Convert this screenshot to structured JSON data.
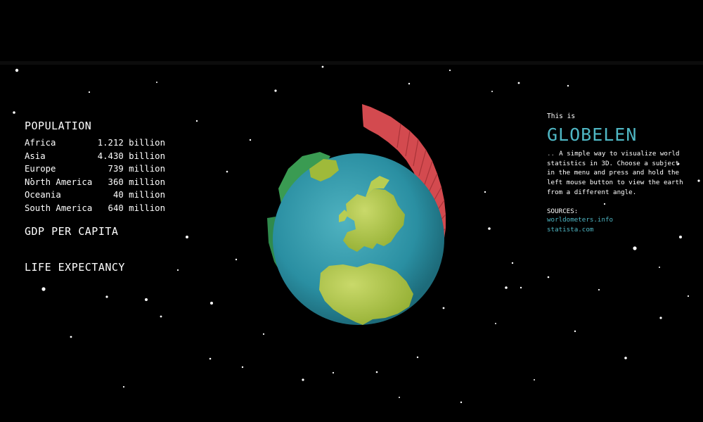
{
  "menu": {
    "population": {
      "title": "POPULATION",
      "rows": [
        {
          "region": "Africa",
          "value": "1.212 billion"
        },
        {
          "region": "Asia",
          "value": "4.430 billion"
        },
        {
          "region": "Europe",
          "value": "  739 million"
        },
        {
          "region": "North America",
          "value": "  360 million"
        },
        {
          "region": "Oceania",
          "value": "   40 million"
        },
        {
          "region": "South America",
          "value": "  640 million"
        }
      ]
    },
    "gdp_title": "GDP PER CAPITA",
    "life_title": "LIFE EXPECTANCY"
  },
  "info": {
    "this_is": "This is",
    "brand": "GLOBELEN",
    "bullet": "..",
    "description": "A simple way to visualize world statistics in 3D. Choose a subject in the menu and press and hold the left mouse button to view the earth from a different angle.",
    "sources_label": "SOURCES:",
    "sources": [
      "worldometers.info",
      "statista.com"
    ]
  },
  "colors": {
    "accent": "#4fb7c4",
    "ocean": "#2a8fa2",
    "land": "#9fba3a",
    "bars": "#d34a4f",
    "background": "#000000"
  }
}
